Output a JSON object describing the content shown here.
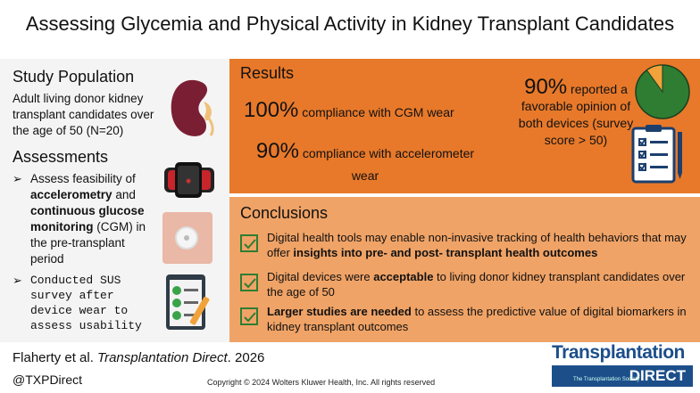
{
  "title": "Assessing Glycemia and Physical Activity in Kidney Transplant Candidates",
  "population": {
    "heading": "Study Population",
    "text": "Adult living donor kidney transplant candidates over the age of 50 (N=20)"
  },
  "assessments": {
    "heading": "Assessments",
    "item1": {
      "t1": "Assess feasibility of ",
      "b1": "accelerometry",
      "t2": " and ",
      "b2": "continuous glucose monitoring",
      "t3": " (CGM) in the pre-transplant period"
    },
    "item2": "Conducted SUS survey after device wear to assess usability"
  },
  "results": {
    "heading": "Results",
    "cgm_pct": "100%",
    "cgm_text": " compliance with CGM wear",
    "acc_pct": "90%",
    "acc_text": " compliance with accelerometer wear",
    "survey_pct": "90%",
    "survey_text": " reported a favorable opinion of both devices (survey score > 50)",
    "pie_fraction": 0.9
  },
  "conclusions": {
    "heading": "Conclusions",
    "c1_t1": "Digital health tools may enable non-invasive tracking of health behaviors that may offer ",
    "c1_b1": "insights into pre- and post- transplant health outcomes",
    "c2_t1": "Digital devices were ",
    "c2_b1": "acceptable",
    "c2_t2": " to living donor kidney transplant candidates over the age of 50",
    "c3_b1": "Larger studies are needed",
    "c3_t1": " to assess the predictive value of digital biomarkers in kidney transplant outcomes"
  },
  "footer": {
    "citation_authors": "Flaherty et al. ",
    "citation_journal": "Transplantation Direct",
    "citation_year": ". 2026",
    "twitter": "@TXPDirect",
    "copyright": "Copyright © 2024  Wolters Kluwer Health, Inc. All rights reserved",
    "logo_top": "Transplantation",
    "logo_bottom": "DIRECT",
    "logo_society": "The Transplantation Society"
  },
  "colors": {
    "results_bg": "#e8792a",
    "conclusions_bg": "#f0a366",
    "pie_green": "#2e7d32",
    "pie_orange": "#f2a23a",
    "check_green": "#2f7d32"
  },
  "icons": [
    "kidney-icon",
    "smartwatch-icon",
    "cgm-sensor-icon",
    "checklist-clipboard-icon",
    "pie-chart-icon",
    "survey-clipboard-icon",
    "checkbox-icon"
  ]
}
